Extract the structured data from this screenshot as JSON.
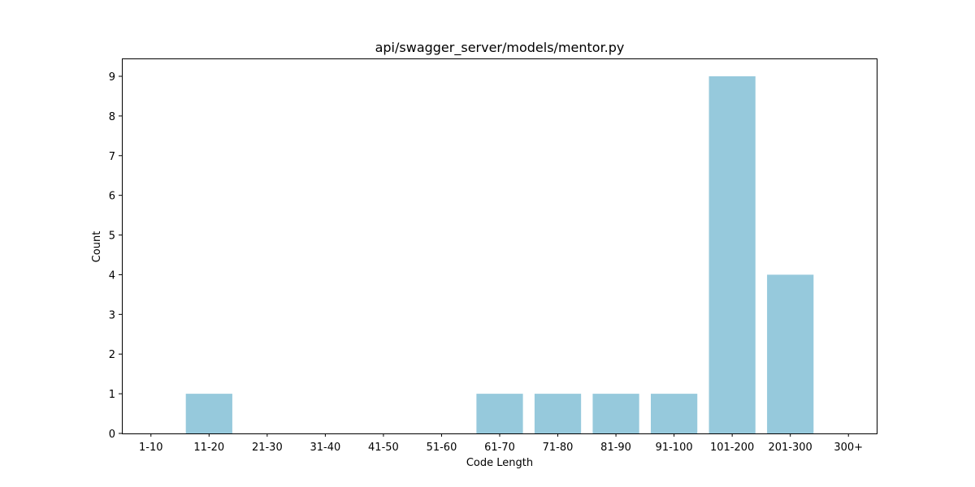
{
  "chart_data": {
    "type": "bar",
    "title": "api/swagger_server/models/mentor.py",
    "xlabel": "Code Length",
    "ylabel": "Count",
    "categories": [
      "1-10",
      "11-20",
      "21-30",
      "31-40",
      "41-50",
      "51-60",
      "61-70",
      "71-80",
      "81-90",
      "91-100",
      "101-200",
      "201-300",
      "300+"
    ],
    "values": [
      0,
      1,
      0,
      0,
      0,
      0,
      1,
      1,
      1,
      1,
      9,
      4,
      0
    ],
    "ylim": [
      0,
      9.45
    ],
    "yticks": [
      "0",
      "1",
      "2",
      "3",
      "4",
      "5",
      "6",
      "7",
      "8",
      "9"
    ],
    "bar_color": "#96c9dc",
    "grid": false,
    "legend": "none"
  }
}
